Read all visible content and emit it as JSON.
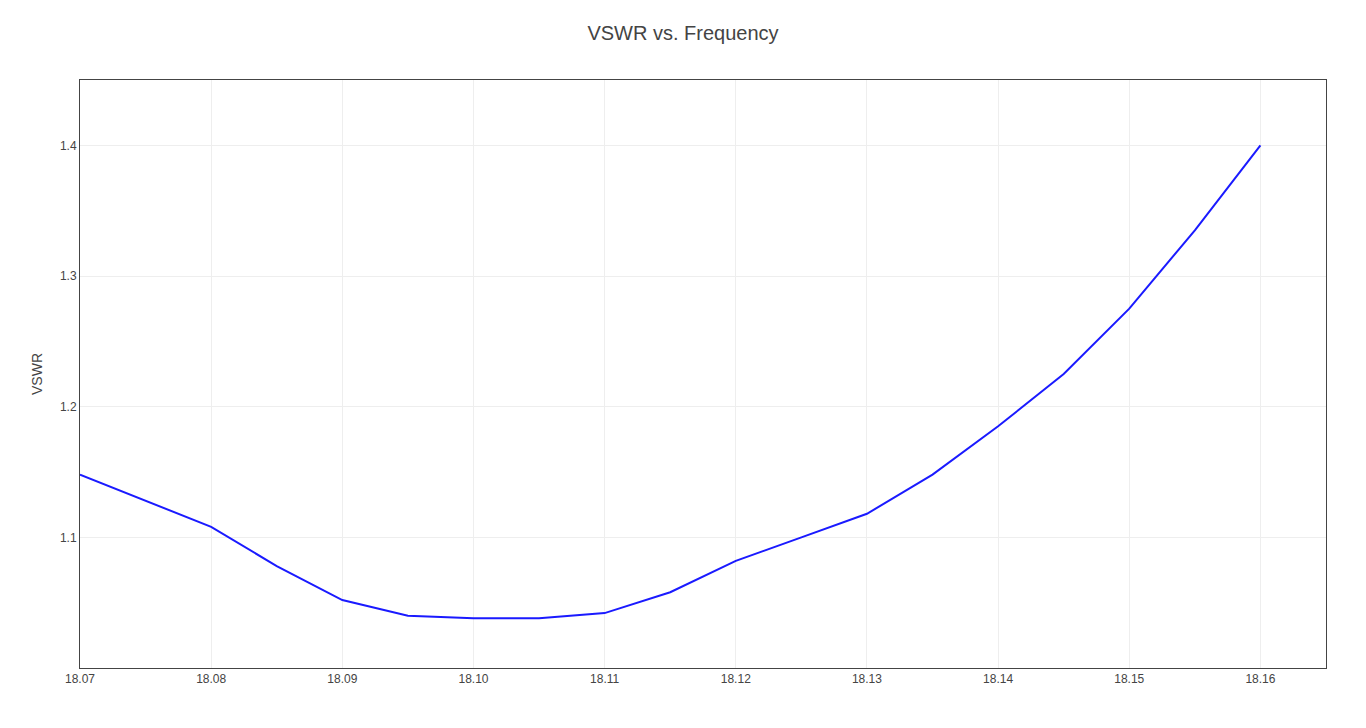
{
  "chart_data": {
    "type": "line",
    "title": "VSWR vs. Frequency",
    "ylabel": "VSWR",
    "x": [
      18.07,
      18.075,
      18.08,
      18.085,
      18.09,
      18.095,
      18.1,
      18.105,
      18.11,
      18.115,
      18.12,
      18.125,
      18.13,
      18.135,
      18.14,
      18.145,
      18.15,
      18.155,
      18.16
    ],
    "values": [
      1.148,
      1.128,
      1.108,
      1.078,
      1.052,
      1.04,
      1.038,
      1.038,
      1.042,
      1.058,
      1.082,
      1.1,
      1.118,
      1.148,
      1.185,
      1.225,
      1.275,
      1.335,
      1.4
    ],
    "color": "#1a1aff",
    "xlim": [
      18.07,
      18.165
    ],
    "ylim": [
      1.0,
      1.45
    ],
    "xticks": [
      18.07,
      18.08,
      18.09,
      {
        "value": 18.1,
        "label": "18.10"
      },
      18.11,
      18.12,
      18.13,
      18.14,
      18.15,
      18.16
    ],
    "yticks": [
      1.1,
      1.2,
      1.3,
      1.4
    ],
    "grid": true
  }
}
